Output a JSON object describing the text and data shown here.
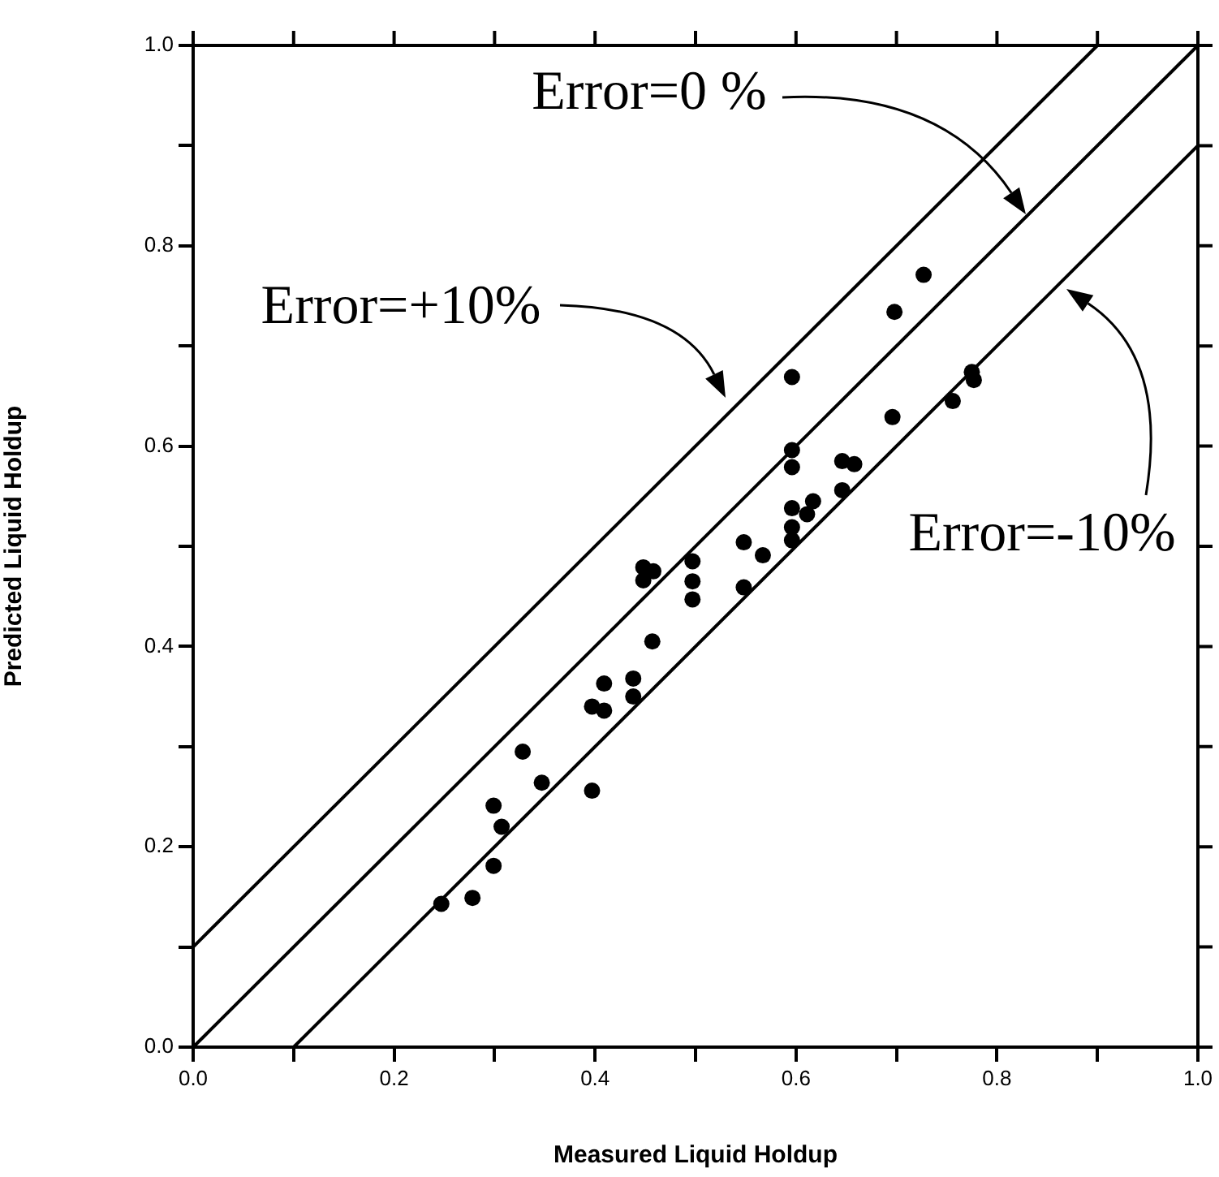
{
  "chart_data": {
    "type": "scatter",
    "xlabel": "Measured Liquid Holdup",
    "ylabel": "Predicted Liquid Holdup",
    "xlim": [
      0,
      1
    ],
    "ylim": [
      0,
      1
    ],
    "xticks": [
      {
        "value": 0,
        "label": "0.0"
      },
      {
        "value": 0.1,
        "label": null
      },
      0.2,
      {
        "value": 0.3,
        "label": null
      },
      0.4,
      {
        "value": 0.5,
        "label": null
      },
      0.6,
      {
        "value": 0.7,
        "label": null
      },
      0.8,
      {
        "value": 0.9,
        "label": null
      },
      {
        "value": 1,
        "label": "1.0"
      }
    ],
    "yticks": [
      {
        "value": 0,
        "label": "0.0"
      },
      {
        "value": 0.1,
        "label": null
      },
      0.2,
      {
        "value": 0.3,
        "label": null
      },
      0.4,
      {
        "value": 0.5,
        "label": null
      },
      0.6,
      {
        "value": 0.7,
        "label": null
      },
      0.8,
      {
        "value": 0.9,
        "label": null
      },
      {
        "value": 1,
        "label": "1.0"
      }
    ],
    "grid": false,
    "legend": false,
    "marker": "circle",
    "series": [
      {
        "color": "#000000",
        "x": [
          0.247,
          0.278,
          0.299,
          0.307,
          0.299,
          0.347,
          0.328,
          0.397,
          0.397,
          0.409,
          0.409,
          0.438,
          0.438,
          0.457,
          0.448,
          0.448,
          0.458,
          0.497,
          0.497,
          0.497,
          0.548,
          0.548,
          0.567,
          0.596,
          0.596,
          0.596,
          0.596,
          0.596,
          0.596,
          0.611,
          0.617,
          0.646,
          0.658,
          0.646,
          0.696,
          0.698,
          0.727,
          0.756,
          0.775,
          0.777
        ],
        "values": [
          0.143,
          0.149,
          0.181,
          0.22,
          0.241,
          0.264,
          0.295,
          0.256,
          0.34,
          0.336,
          0.363,
          0.35,
          0.368,
          0.405,
          0.479,
          0.466,
          0.475,
          0.485,
          0.465,
          0.447,
          0.504,
          0.459,
          0.491,
          0.669,
          0.596,
          0.579,
          0.538,
          0.519,
          0.506,
          0.532,
          0.545,
          0.585,
          0.582,
          0.556,
          0.629,
          0.734,
          0.771,
          0.645,
          0.674,
          0.666
        ]
      },
      {
        "type": "line",
        "color": "#000000",
        "line_style": "solid",
        "marker": "none",
        "x": [
          0,
          0.9
        ],
        "values": [
          0.1,
          1
        ]
      },
      {
        "type": "line",
        "color": "#000000",
        "line_style": "solid",
        "marker": "none",
        "x": [
          0,
          1
        ],
        "values": [
          0,
          1
        ]
      },
      {
        "type": "line",
        "color": "#000000",
        "line_style": "solid",
        "marker": "none",
        "x": [
          0.1,
          1
        ],
        "values": [
          0,
          0.9
        ]
      }
    ],
    "annotations": [
      "Error=0 %",
      "Error=+10%",
      "Error=-10%"
    ]
  }
}
